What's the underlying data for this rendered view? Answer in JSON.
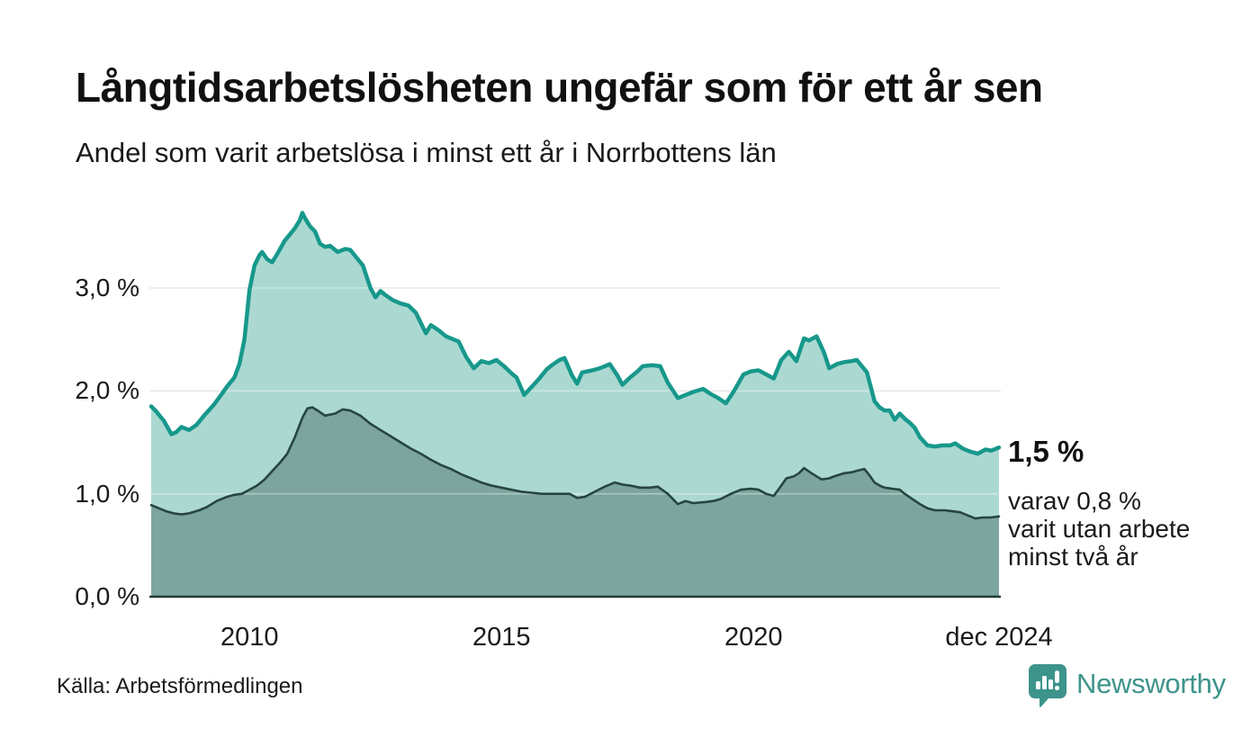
{
  "header": {
    "title": "Långtidsarbetslösheten ungefär som för ett år sen",
    "subtitle": "Andel som varit arbetslösa i minst ett år i Norrbottens län"
  },
  "annotation": {
    "value_label": "1,5 %",
    "detail_lines": [
      "varav 0,8 %",
      "varit utan arbete",
      "minst två år"
    ]
  },
  "footer": {
    "source": "Källa: Arbetsförmedlingen",
    "brand": "Newsworthy",
    "brand_color": "#3d948b"
  },
  "chart_data": {
    "type": "area",
    "title": "Långtidsarbetslösheten ungefär som för ett år sen",
    "subtitle": "Andel som varit arbetslösa i minst ett år i Norrbottens län",
    "source": "Källa: Arbetsförmedlingen",
    "grid": "horizontal",
    "legend_position": "none",
    "xlim": [
      2008.05,
      2024.87
    ],
    "ylim": [
      0,
      4
    ],
    "y_unit": "%",
    "y_ticks": [
      {
        "label": "0,0 %",
        "value": 0
      },
      {
        "label": "1,0 %",
        "value": 1
      },
      {
        "label": "2,0 %",
        "value": 2
      },
      {
        "label": "3,0 %",
        "value": 3
      }
    ],
    "x_ticks": [
      {
        "label": "2010",
        "t": 2010
      },
      {
        "label": "2015",
        "t": 2015
      },
      {
        "label": "2020",
        "t": 2020
      },
      {
        "label": "dec 2024",
        "t": 2024.87
      }
    ],
    "series": [
      {
        "name": "minst ett år",
        "end_label": "1,5 %",
        "end_value": 1.5,
        "line_color": "#17988b",
        "fill_color": "#abd9d2",
        "line_width": 4.5,
        "points": [
          [
            2008.05,
            1.85
          ],
          [
            2008.15,
            1.8
          ],
          [
            2008.3,
            1.71
          ],
          [
            2008.45,
            1.58
          ],
          [
            2008.55,
            1.6
          ],
          [
            2008.65,
            1.65
          ],
          [
            2008.8,
            1.62
          ],
          [
            2008.95,
            1.67
          ],
          [
            2009.1,
            1.76
          ],
          [
            2009.3,
            1.87
          ],
          [
            2009.45,
            1.97
          ],
          [
            2009.55,
            2.04
          ],
          [
            2009.7,
            2.13
          ],
          [
            2009.8,
            2.26
          ],
          [
            2009.9,
            2.5
          ],
          [
            2010.0,
            2.98
          ],
          [
            2010.1,
            3.22
          ],
          [
            2010.2,
            3.32
          ],
          [
            2010.25,
            3.35
          ],
          [
            2010.35,
            3.28
          ],
          [
            2010.45,
            3.25
          ],
          [
            2010.55,
            3.33
          ],
          [
            2010.7,
            3.46
          ],
          [
            2010.8,
            3.52
          ],
          [
            2010.9,
            3.58
          ],
          [
            2011.0,
            3.66
          ],
          [
            2011.05,
            3.73
          ],
          [
            2011.1,
            3.68
          ],
          [
            2011.2,
            3.6
          ],
          [
            2011.3,
            3.55
          ],
          [
            2011.4,
            3.43
          ],
          [
            2011.5,
            3.4
          ],
          [
            2011.6,
            3.41
          ],
          [
            2011.75,
            3.35
          ],
          [
            2011.9,
            3.38
          ],
          [
            2012.0,
            3.37
          ],
          [
            2012.15,
            3.28
          ],
          [
            2012.25,
            3.22
          ],
          [
            2012.4,
            3.0
          ],
          [
            2012.5,
            2.91
          ],
          [
            2012.6,
            2.97
          ],
          [
            2012.7,
            2.93
          ],
          [
            2012.85,
            2.88
          ],
          [
            2013.0,
            2.85
          ],
          [
            2013.15,
            2.83
          ],
          [
            2013.3,
            2.76
          ],
          [
            2013.5,
            2.56
          ],
          [
            2013.6,
            2.64
          ],
          [
            2013.75,
            2.59
          ],
          [
            2013.9,
            2.53
          ],
          [
            2014.05,
            2.5
          ],
          [
            2014.15,
            2.48
          ],
          [
            2014.3,
            2.33
          ],
          [
            2014.45,
            2.22
          ],
          [
            2014.6,
            2.29
          ],
          [
            2014.75,
            2.27
          ],
          [
            2014.9,
            2.3
          ],
          [
            2015.05,
            2.24
          ],
          [
            2015.2,
            2.17
          ],
          [
            2015.3,
            2.13
          ],
          [
            2015.45,
            1.96
          ],
          [
            2015.6,
            2.04
          ],
          [
            2015.75,
            2.12
          ],
          [
            2015.9,
            2.21
          ],
          [
            2016.0,
            2.25
          ],
          [
            2016.15,
            2.3
          ],
          [
            2016.25,
            2.32
          ],
          [
            2016.4,
            2.15
          ],
          [
            2016.5,
            2.07
          ],
          [
            2016.6,
            2.18
          ],
          [
            2016.8,
            2.2
          ],
          [
            2016.95,
            2.22
          ],
          [
            2017.15,
            2.26
          ],
          [
            2017.3,
            2.15
          ],
          [
            2017.4,
            2.06
          ],
          [
            2017.55,
            2.13
          ],
          [
            2017.7,
            2.19
          ],
          [
            2017.8,
            2.24
          ],
          [
            2018.0,
            2.25
          ],
          [
            2018.15,
            2.24
          ],
          [
            2018.3,
            2.08
          ],
          [
            2018.5,
            1.93
          ],
          [
            2018.65,
            1.96
          ],
          [
            2018.8,
            1.99
          ],
          [
            2019.0,
            2.02
          ],
          [
            2019.15,
            1.97
          ],
          [
            2019.3,
            1.93
          ],
          [
            2019.45,
            1.88
          ],
          [
            2019.6,
            1.99
          ],
          [
            2019.8,
            2.16
          ],
          [
            2019.95,
            2.19
          ],
          [
            2020.1,
            2.2
          ],
          [
            2020.25,
            2.16
          ],
          [
            2020.4,
            2.12
          ],
          [
            2020.55,
            2.3
          ],
          [
            2020.7,
            2.38
          ],
          [
            2020.85,
            2.29
          ],
          [
            2021.0,
            2.51
          ],
          [
            2021.1,
            2.49
          ],
          [
            2021.25,
            2.53
          ],
          [
            2021.4,
            2.37
          ],
          [
            2021.5,
            2.22
          ],
          [
            2021.65,
            2.26
          ],
          [
            2021.8,
            2.28
          ],
          [
            2021.95,
            2.29
          ],
          [
            2022.05,
            2.3
          ],
          [
            2022.15,
            2.24
          ],
          [
            2022.25,
            2.18
          ],
          [
            2022.4,
            1.9
          ],
          [
            2022.5,
            1.84
          ],
          [
            2022.6,
            1.81
          ],
          [
            2022.7,
            1.81
          ],
          [
            2022.8,
            1.72
          ],
          [
            2022.9,
            1.78
          ],
          [
            2023.0,
            1.73
          ],
          [
            2023.1,
            1.69
          ],
          [
            2023.2,
            1.64
          ],
          [
            2023.3,
            1.55
          ],
          [
            2023.45,
            1.47
          ],
          [
            2023.6,
            1.46
          ],
          [
            2023.75,
            1.47
          ],
          [
            2023.9,
            1.47
          ],
          [
            2024.0,
            1.49
          ],
          [
            2024.15,
            1.44
          ],
          [
            2024.3,
            1.41
          ],
          [
            2024.45,
            1.39
          ],
          [
            2024.6,
            1.43
          ],
          [
            2024.72,
            1.42
          ],
          [
            2024.87,
            1.45
          ]
        ]
      },
      {
        "name": "minst två år",
        "end_label": "varav 0,8 % varit utan arbete minst två år",
        "end_value": 0.8,
        "line_color": "#27453f",
        "fill_color": "#7ba59e",
        "line_width": 2.6,
        "points": [
          [
            2008.05,
            0.89
          ],
          [
            2008.2,
            0.86
          ],
          [
            2008.35,
            0.83
          ],
          [
            2008.5,
            0.81
          ],
          [
            2008.65,
            0.8
          ],
          [
            2008.8,
            0.81
          ],
          [
            2009.0,
            0.84
          ],
          [
            2009.15,
            0.87
          ],
          [
            2009.35,
            0.93
          ],
          [
            2009.55,
            0.97
          ],
          [
            2009.7,
            0.99
          ],
          [
            2009.85,
            1.0
          ],
          [
            2010.0,
            1.04
          ],
          [
            2010.15,
            1.08
          ],
          [
            2010.3,
            1.14
          ],
          [
            2010.45,
            1.22
          ],
          [
            2010.6,
            1.3
          ],
          [
            2010.75,
            1.39
          ],
          [
            2010.9,
            1.55
          ],
          [
            2011.05,
            1.74
          ],
          [
            2011.15,
            1.83
          ],
          [
            2011.25,
            1.84
          ],
          [
            2011.35,
            1.81
          ],
          [
            2011.5,
            1.76
          ],
          [
            2011.7,
            1.78
          ],
          [
            2011.85,
            1.82
          ],
          [
            2012.0,
            1.81
          ],
          [
            2012.2,
            1.76
          ],
          [
            2012.4,
            1.68
          ],
          [
            2012.6,
            1.62
          ],
          [
            2012.8,
            1.56
          ],
          [
            2013.0,
            1.5
          ],
          [
            2013.2,
            1.44
          ],
          [
            2013.4,
            1.39
          ],
          [
            2013.6,
            1.33
          ],
          [
            2013.8,
            1.28
          ],
          [
            2014.0,
            1.24
          ],
          [
            2014.2,
            1.19
          ],
          [
            2014.4,
            1.15
          ],
          [
            2014.6,
            1.11
          ],
          [
            2014.8,
            1.08
          ],
          [
            2015.0,
            1.06
          ],
          [
            2015.2,
            1.04
          ],
          [
            2015.4,
            1.02
          ],
          [
            2015.6,
            1.01
          ],
          [
            2015.8,
            1.0
          ],
          [
            2016.0,
            1.0
          ],
          [
            2016.2,
            1.0
          ],
          [
            2016.35,
            1.0
          ],
          [
            2016.5,
            0.96
          ],
          [
            2016.65,
            0.97
          ],
          [
            2016.85,
            1.02
          ],
          [
            2017.05,
            1.07
          ],
          [
            2017.25,
            1.11
          ],
          [
            2017.4,
            1.09
          ],
          [
            2017.55,
            1.08
          ],
          [
            2017.75,
            1.06
          ],
          [
            2017.95,
            1.06
          ],
          [
            2018.1,
            1.07
          ],
          [
            2018.3,
            1.0
          ],
          [
            2018.5,
            0.9
          ],
          [
            2018.65,
            0.93
          ],
          [
            2018.8,
            0.91
          ],
          [
            2019.05,
            0.92
          ],
          [
            2019.2,
            0.93
          ],
          [
            2019.35,
            0.95
          ],
          [
            2019.55,
            1.0
          ],
          [
            2019.75,
            1.04
          ],
          [
            2019.95,
            1.05
          ],
          [
            2020.1,
            1.04
          ],
          [
            2020.25,
            1.0
          ],
          [
            2020.4,
            0.98
          ],
          [
            2020.55,
            1.08
          ],
          [
            2020.65,
            1.15
          ],
          [
            2020.8,
            1.17
          ],
          [
            2020.9,
            1.2
          ],
          [
            2021.0,
            1.25
          ],
          [
            2021.15,
            1.2
          ],
          [
            2021.35,
            1.14
          ],
          [
            2021.5,
            1.15
          ],
          [
            2021.6,
            1.17
          ],
          [
            2021.8,
            1.2
          ],
          [
            2021.95,
            1.21
          ],
          [
            2022.1,
            1.23
          ],
          [
            2022.2,
            1.24
          ],
          [
            2022.3,
            1.18
          ],
          [
            2022.4,
            1.11
          ],
          [
            2022.5,
            1.08
          ],
          [
            2022.6,
            1.06
          ],
          [
            2022.75,
            1.05
          ],
          [
            2022.9,
            1.04
          ],
          [
            2023.0,
            1.0
          ],
          [
            2023.15,
            0.95
          ],
          [
            2023.3,
            0.9
          ],
          [
            2023.45,
            0.86
          ],
          [
            2023.6,
            0.84
          ],
          [
            2023.8,
            0.84
          ],
          [
            2023.95,
            0.83
          ],
          [
            2024.1,
            0.82
          ],
          [
            2024.25,
            0.79
          ],
          [
            2024.4,
            0.76
          ],
          [
            2024.55,
            0.77
          ],
          [
            2024.7,
            0.77
          ],
          [
            2024.87,
            0.78
          ]
        ]
      }
    ]
  }
}
